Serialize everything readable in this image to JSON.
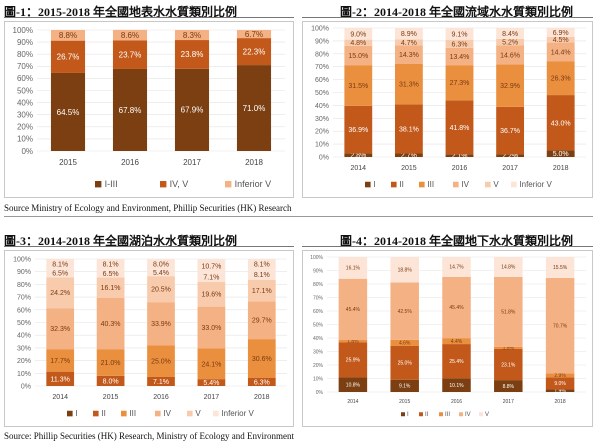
{
  "source_top": "Source Ministry of Ecology and Environment, Phillip Securities (HK) Research",
  "source_bottom": "Source: Phillip Securities (HK) Research, Ministry of Ecology and Environment",
  "colors": {
    "I": "#7b3f12",
    "II": "#c2591b",
    "III": "#ea8f3e",
    "IV": "#f4b183",
    "V": "#f8cbad",
    "VI": "#fce4d6"
  },
  "chart_data": [
    {
      "type": "bar",
      "stacked": true,
      "title": "圖-1：2015-2018 年全國地表水水質類別比例",
      "categories": [
        "2015",
        "2016",
        "2017",
        "2018"
      ],
      "ylim": [
        0,
        100
      ],
      "y_ticks": [
        "0%",
        "10%",
        "20%",
        "30%",
        "40%",
        "50%",
        "60%",
        "70%",
        "80%",
        "90%",
        "100%"
      ],
      "legend_position": "bottom",
      "series": [
        {
          "name": "I-III",
          "color_key": "I",
          "values": [
            64.5,
            67.8,
            67.9,
            71.0
          ],
          "labels": [
            "64.5%",
            "67.8%",
            "67.9%",
            "71.0%"
          ]
        },
        {
          "name": "IV, V",
          "color_key": "II",
          "values": [
            26.7,
            23.7,
            23.8,
            22.3
          ],
          "labels": [
            "26.7%",
            "23.7%",
            "23.8%",
            "22.3%"
          ]
        },
        {
          "name": "Inferior  V",
          "color_key": "IV",
          "values": [
            8.8,
            8.6,
            8.3,
            6.7
          ],
          "labels": [
            "8.8%",
            "8.6%",
            "8.3%",
            "6.7%"
          ]
        }
      ]
    },
    {
      "type": "bar",
      "stacked": true,
      "title": "圖-2：2014-2018 年全國流域水水質類別比例",
      "categories": [
        "2014",
        "2015",
        "2016",
        "2017",
        "2018"
      ],
      "ylim": [
        0,
        100
      ],
      "y_ticks": [
        "0%",
        "10%",
        "20%",
        "30%",
        "40%",
        "50%",
        "60%",
        "70%",
        "80%",
        "90%",
        "100%"
      ],
      "legend_position": "bottom",
      "series": [
        {
          "name": "I",
          "color_key": "I",
          "values": [
            2.8,
            2.7,
            2.1,
            2.2,
            5.0
          ],
          "labels": [
            "2.8%",
            "2.7%",
            "2.1%",
            "2.2%",
            "5.0%"
          ]
        },
        {
          "name": "II",
          "color_key": "II",
          "values": [
            36.9,
            38.1,
            41.8,
            36.7,
            43.0
          ],
          "labels": [
            "36.9%",
            "38.1%",
            "41.8%",
            "36.7%",
            "43.0%"
          ]
        },
        {
          "name": "III",
          "color_key": "III",
          "values": [
            31.5,
            31.3,
            27.3,
            32.9,
            26.3
          ],
          "labels": [
            "31.5%",
            "31.3%",
            "27.3%",
            "32.9%",
            "26.3%"
          ]
        },
        {
          "name": "IV",
          "color_key": "IV",
          "values": [
            15.0,
            14.3,
            13.4,
            14.6,
            14.4
          ],
          "labels": [
            "15.0%",
            "14.3%",
            "13.4%",
            "14.6%",
            "14.4%"
          ]
        },
        {
          "name": "V",
          "color_key": "V",
          "values": [
            4.8,
            4.7,
            6.3,
            5.2,
            4.5
          ],
          "labels": [
            "4.8%",
            "4.7%",
            "6.3%",
            "5.2%",
            "4.5%"
          ]
        },
        {
          "name": "Inferior  V",
          "color_key": "VI",
          "values": [
            9.0,
            8.9,
            9.1,
            8.4,
            6.9
          ],
          "labels": [
            "9.0%",
            "8.9%",
            "9.1%",
            "8.4%",
            "6.9%"
          ]
        }
      ]
    },
    {
      "type": "bar",
      "stacked": true,
      "title": "圖-3：2014-2018 年全國湖泊水水質類別比例",
      "categories": [
        "2014",
        "2015",
        "2016",
        "2017",
        "2018"
      ],
      "ylim": [
        0,
        100
      ],
      "y_ticks": [
        "0%",
        "10%",
        "20%",
        "30%",
        "40%",
        "50%",
        "60%",
        "70%",
        "80%",
        "90%",
        "100%"
      ],
      "legend_position": "bottom",
      "series": [
        {
          "name": "I",
          "color_key": "I",
          "values": [
            0.0,
            0.0,
            0.0,
            0.0,
            0.0
          ],
          "labels": [
            "",
            "",
            "",
            "",
            ""
          ]
        },
        {
          "name": "II",
          "color_key": "II",
          "values": [
            11.3,
            8.0,
            7.1,
            5.4,
            6.3
          ],
          "labels": [
            "11.3%",
            "8.0%",
            "7.1%",
            "5.4%",
            "6.3%"
          ]
        },
        {
          "name": "III",
          "color_key": "III",
          "values": [
            17.7,
            21.0,
            25.0,
            24.1,
            30.6
          ],
          "labels": [
            "17.7%",
            "21.0%",
            "25.0%",
            "24.1%",
            "30.6%"
          ]
        },
        {
          "name": "IV",
          "color_key": "IV",
          "values": [
            32.3,
            40.3,
            33.9,
            33.0,
            29.7
          ],
          "labels": [
            "32.3%",
            "40.3%",
            "33.9%",
            "33.0%",
            "29.7%"
          ]
        },
        {
          "name": "V",
          "color_key": "V",
          "values": [
            24.2,
            16.1,
            20.5,
            19.6,
            17.1
          ],
          "labels": [
            "24.2%",
            "16.1%",
            "20.5%",
            "19.6%",
            "17.1%"
          ]
        },
        {
          "name": "Inferior  V",
          "color_key": "VI",
          "values": [
            6.5,
            6.5,
            5.4,
            7.1,
            8.1
          ],
          "labels": [
            "6.5%",
            "6.5%",
            "5.4%",
            "7.1%",
            "8.1%"
          ]
        },
        {
          "name": "",
          "color_key": "VI",
          "values": [
            8.1,
            8.1,
            8.0,
            10.7,
            8.1
          ],
          "labels": [
            "8.1%",
            "8.1%",
            "8.0%",
            "10.7%",
            "8.1%"
          ]
        }
      ]
    },
    {
      "type": "bar",
      "stacked": true,
      "title": "圖-4：2014-2018 年全國地下水水質類別比例",
      "categories": [
        "2014",
        "2015",
        "2016",
        "2017",
        "2018"
      ],
      "ylim": [
        0,
        100
      ],
      "y_ticks": [
        "0%",
        "10%",
        "20%",
        "30%",
        "40%",
        "50%",
        "60%",
        "70%",
        "80%",
        "90%",
        "100%"
      ],
      "legend_position": "bottom",
      "series": [
        {
          "name": "I",
          "color_key": "I",
          "values": [
            10.8,
            9.1,
            10.1,
            8.8,
            1.9
          ],
          "labels": [
            "10.8%",
            "9.1%",
            "10.1%",
            "8.8%",
            "1.9%"
          ]
        },
        {
          "name": "II",
          "color_key": "II",
          "values": [
            25.9,
            25.0,
            25.4,
            23.1,
            9.0
          ],
          "labels": [
            "25.9%",
            "25.0%",
            "25.4%",
            "23.1%",
            "9.0%"
          ]
        },
        {
          "name": "III",
          "color_key": "III",
          "values": [
            1.8,
            4.6,
            4.4,
            1.5,
            2.9
          ],
          "labels": [
            "1.8%",
            "4.6%",
            "4.4%",
            "1.5%",
            "2.9%"
          ]
        },
        {
          "name": "IV",
          "color_key": "IV",
          "values": [
            45.4,
            42.5,
            45.4,
            51.8,
            70.7
          ],
          "labels": [
            "45.4%",
            "42.5%",
            "45.4%",
            "51.8%",
            "70.7%"
          ]
        },
        {
          "name": "V",
          "color_key": "VI",
          "values": [
            16.1,
            18.8,
            14.7,
            14.8,
            15.5
          ],
          "labels": [
            "16.1%",
            "18.8%",
            "14.7%",
            "14.8%",
            "15.5%"
          ]
        }
      ]
    }
  ]
}
